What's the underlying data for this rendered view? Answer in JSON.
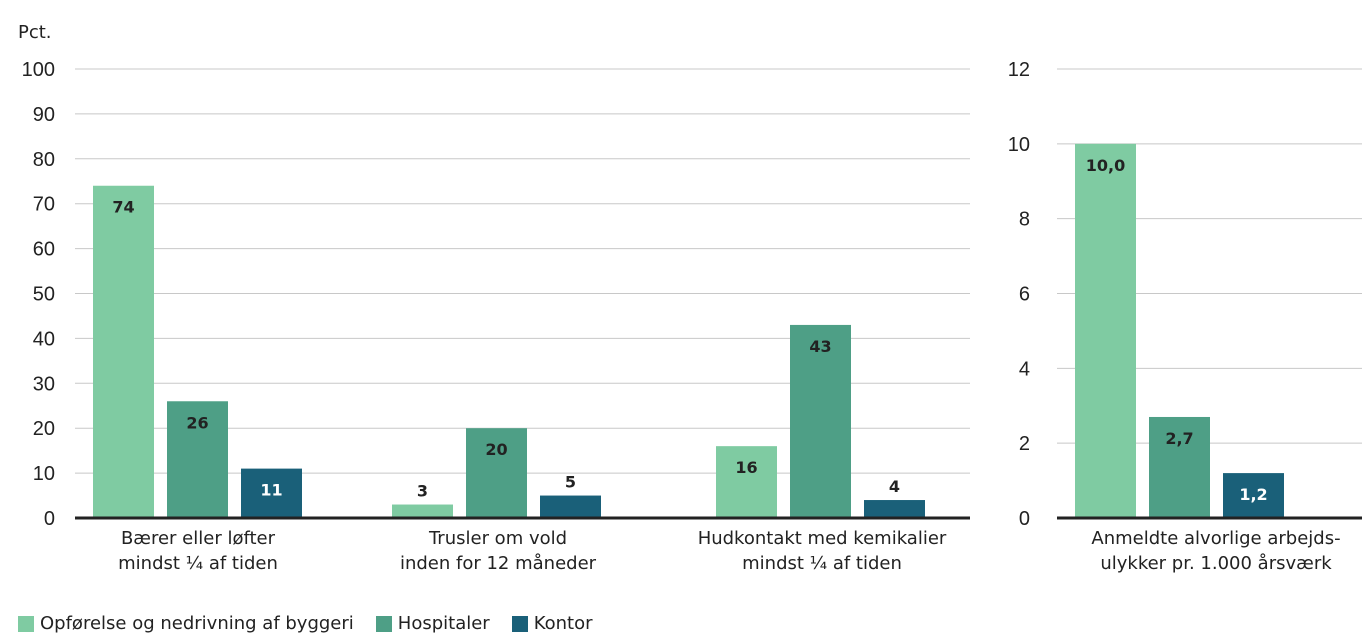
{
  "chart_data": [
    {
      "type": "bar",
      "ylabel": "Pct.",
      "ylim": [
        0,
        100
      ],
      "yticks": [
        0,
        10,
        20,
        30,
        40,
        50,
        60,
        70,
        80,
        90,
        100
      ],
      "grid": true,
      "categories": [
        [
          "Bærer eller løfter",
          "mindst ¼ af tiden"
        ],
        [
          "Trusler om vold",
          "inden for 12 måneder"
        ],
        [
          "Hudkontakt med kemikalier",
          "mindst ¼ af tiden"
        ]
      ],
      "series": [
        {
          "name": "Opførelse og nedrivning af byggeri",
          "values": [
            74,
            3,
            16
          ],
          "labels": [
            "74",
            "3",
            "16"
          ]
        },
        {
          "name": "Hospitaler",
          "values": [
            26,
            20,
            43
          ],
          "labels": [
            "26",
            "20",
            "43"
          ]
        },
        {
          "name": "Kontor",
          "values": [
            11,
            5,
            4
          ],
          "labels": [
            "11",
            "5",
            "4"
          ]
        }
      ]
    },
    {
      "type": "bar",
      "ylim": [
        0,
        12
      ],
      "yticks": [
        0,
        2,
        4,
        6,
        8,
        10,
        12
      ],
      "grid": true,
      "categories": [
        [
          "Anmeldte alvorlige arbejds-",
          "ulykker pr. 1.000 årsværk"
        ]
      ],
      "series": [
        {
          "name": "Opførelse og nedrivning af byggeri",
          "values": [
            10.0
          ],
          "labels": [
            "10,0"
          ]
        },
        {
          "name": "Hospitaler",
          "values": [
            2.7
          ],
          "labels": [
            "2,7"
          ]
        },
        {
          "name": "Kontor",
          "values": [
            1.2
          ],
          "labels": [
            "1,2"
          ]
        }
      ]
    }
  ],
  "legend": {
    "placement": "bottom-left",
    "items": [
      {
        "label": "Opførelse og nedrivning af byggeri",
        "color": "#7fcba2"
      },
      {
        "label": "Hospitaler",
        "color": "#4e9f86"
      },
      {
        "label": "Kontor",
        "color": "#1a6079"
      }
    ]
  },
  "colors": {
    "series": [
      "#7fcba2",
      "#4e9f86",
      "#1a6079"
    ],
    "label_text": [
      "#222222",
      "#222222",
      "#ffffff"
    ],
    "grid": "#c8c8c8",
    "axis": "#222222"
  }
}
